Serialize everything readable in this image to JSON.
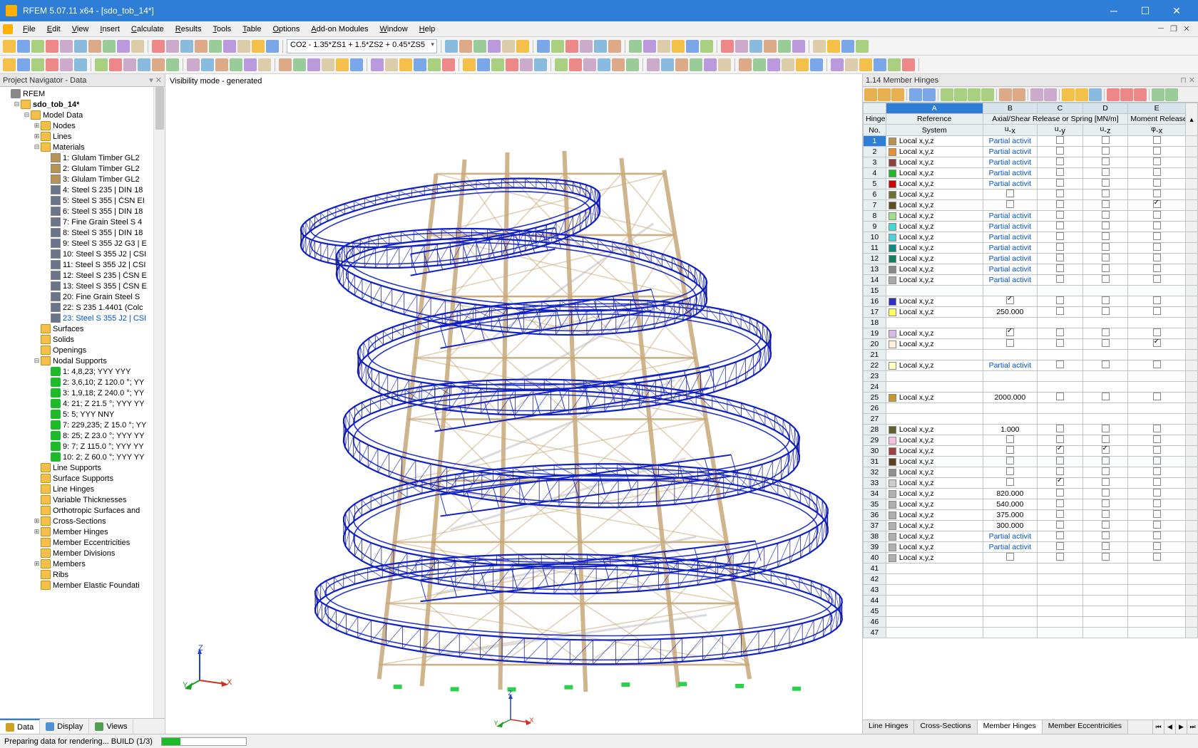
{
  "app": {
    "title": "RFEM 5.07.11 x64 - [sdo_tob_14*]",
    "icon_color": "#ffb000",
    "titlebar_bg": "#2e7dd7"
  },
  "menu": [
    "File",
    "Edit",
    "View",
    "Insert",
    "Calculate",
    "Results",
    "Tools",
    "Table",
    "Options",
    "Add-on Modules",
    "Window",
    "Help"
  ],
  "toolbar1_combo": "CO2 - 1.35*ZS1 + 1.5*ZS2 + 0.45*ZS5",
  "nav": {
    "title": "Project Navigator - Data",
    "root": "RFEM",
    "project": "sdo_tob_14*",
    "model_data": "Model Data",
    "basics": [
      "Nodes",
      "Lines",
      "Materials"
    ],
    "materials": [
      "1: Glulam Timber GL2",
      "2: Glulam Timber GL2",
      "3: Glulam Timber GL2",
      "4: Steel S 235 | DIN 18",
      "5: Steel S 355 | ČSN EI",
      "6: Steel S 355 | DIN 18",
      "7: Fine Grain Steel S 4",
      "8: Steel S 355 | DIN 18",
      "9: Steel S 355 J2 G3 | E",
      "10: Steel S 355 J2 | CSI",
      "11: Steel S 355 J2 | CSI",
      "12: Steel S 235 | ČSN E",
      "13: Steel S 355 | ČSN E",
      "20: Fine Grain Steel S",
      "22: S 235 1.4401 (Colc",
      "23: Steel S 355 J2 | CSI"
    ],
    "material_selected_idx": 15,
    "mid": [
      "Surfaces",
      "Solids",
      "Openings",
      "Nodal Supports"
    ],
    "supports": [
      "1: 4,8,23; YYY YYY",
      "2: 3,6,10; Z 120.0 °; YY",
      "3: 1,9,18; Z 240.0 °; YY",
      "4: 21; Z 21.5 °; YYY YY",
      "5: 5; YYY NNY",
      "7: 229,235; Z 15.0 °; YY",
      "8: 25; Z 23.0 °; YYY YY",
      "9: 7; Z 115.0 °; YYY YY",
      "10: 2; Z 60.0 °; YYY YY"
    ],
    "tail": [
      "Line Supports",
      "Surface Supports",
      "Line Hinges",
      "Variable Thicknesses",
      "Orthotropic Surfaces and",
      "Cross-Sections",
      "Member Hinges",
      "Member Eccentricities",
      "Member Divisions",
      "Members",
      "Ribs",
      "Member Elastic Foundati"
    ],
    "tabs": [
      "Data",
      "Display",
      "Views"
    ],
    "tab_icons": [
      "#d0a020",
      "#5090d0",
      "#50a050"
    ]
  },
  "viewport": {
    "label": "Visibility mode - generated"
  },
  "table": {
    "title": "1.14 Member Hinges",
    "cols_letters": [
      "A",
      "B",
      "C",
      "D",
      "E"
    ],
    "header1": [
      "Hinge",
      "Reference",
      "Axial/Shear Release or Spring [MN/m]",
      "Moment Release"
    ],
    "header2": [
      "No.",
      "System",
      "u-x",
      "u-y",
      "u-z",
      "φ-x"
    ],
    "ref_text": "Local x,y,z",
    "partial_text": "Partial activit",
    "rows": [
      {
        "n": 1,
        "c": "#b89454",
        "ux": "P",
        "uy": "chk",
        "uz": "chk",
        "px": "chk",
        "sel": true
      },
      {
        "n": 2,
        "c": "#e89030",
        "ux": "P",
        "uy": "chk",
        "uz": "chk",
        "px": "chk"
      },
      {
        "n": 3,
        "c": "#904040",
        "ux": "P",
        "uy": "chk",
        "uz": "chk",
        "px": "chk"
      },
      {
        "n": 4,
        "c": "#1dbb2a",
        "ux": "P",
        "uy": "chk",
        "uz": "chk",
        "px": "chk"
      },
      {
        "n": 5,
        "c": "#d30000",
        "ux": "P",
        "uy": "chk",
        "uz": "chk",
        "px": "chk"
      },
      {
        "n": 6,
        "c": "#707030",
        "ux": "chk",
        "uy": "chk",
        "uz": "chk",
        "px": "chk"
      },
      {
        "n": 7,
        "c": "#605020",
        "ux": "chk",
        "uy": "chk",
        "uz": "chk",
        "px": "chkon"
      },
      {
        "n": 8,
        "c": "#9de08a",
        "ux": "P",
        "uy": "chk",
        "uz": "chk",
        "px": "chk"
      },
      {
        "n": 9,
        "c": "#40d8d0",
        "ux": "P",
        "uy": "chk",
        "uz": "chk",
        "px": "chk"
      },
      {
        "n": 10,
        "c": "#4fd0d8",
        "ux": "P",
        "uy": "chk",
        "uz": "chk",
        "px": "chk"
      },
      {
        "n": 11,
        "c": "#0f8a80",
        "ux": "P",
        "uy": "chk",
        "uz": "chk",
        "px": "chk"
      },
      {
        "n": 12,
        "c": "#108060",
        "ux": "P",
        "uy": "chk",
        "uz": "chk",
        "px": "chk"
      },
      {
        "n": 13,
        "c": "#888888",
        "ux": "P",
        "uy": "chk",
        "uz": "chk",
        "px": "chk"
      },
      {
        "n": 14,
        "c": "#aaaaaa",
        "ux": "P",
        "uy": "chk",
        "uz": "chk",
        "px": "chk"
      },
      {
        "n": 15,
        "empty": true
      },
      {
        "n": 16,
        "c": "#3030c8",
        "ux": "chkon",
        "uy": "chk",
        "uz": "chk",
        "px": "chk"
      },
      {
        "n": 17,
        "c": "#ffff60",
        "ux": "250.000",
        "uy": "chk",
        "uz": "chk",
        "px": "chk"
      },
      {
        "n": 18,
        "empty": true
      },
      {
        "n": 19,
        "c": "#d8b8e8",
        "ux": "chkon",
        "uy": "chk",
        "uz": "chk",
        "px": "chk"
      },
      {
        "n": 20,
        "c": "#fff0d8",
        "ux": "chk",
        "uy": "chk",
        "uz": "chk",
        "px": "chkon"
      },
      {
        "n": 21,
        "empty": true
      },
      {
        "n": 22,
        "c": "#ffffc0",
        "ux": "P",
        "uy": "chk",
        "uz": "chk",
        "px": "chk"
      },
      {
        "n": 23,
        "empty": true
      },
      {
        "n": 24,
        "empty": true
      },
      {
        "n": 25,
        "c": "#c89830",
        "ux": "2000.000",
        "uy": "chk",
        "uz": "chk",
        "px": "chk"
      },
      {
        "n": 26,
        "empty": true
      },
      {
        "n": 27,
        "empty": true
      },
      {
        "n": 28,
        "c": "#606030",
        "ux": "1.000",
        "uy": "chk",
        "uz": "chk",
        "px": "chk"
      },
      {
        "n": 29,
        "c": "#f8c0e0",
        "ux": "chk",
        "uy": "chk",
        "uz": "chk",
        "px": "chk"
      },
      {
        "n": 30,
        "c": "#a04040",
        "ux": "chk",
        "uy": "chkon",
        "uz": "chkon",
        "px": "chk"
      },
      {
        "n": 31,
        "c": "#604020",
        "ux": "chk",
        "uy": "chk",
        "uz": "chk",
        "px": "chk"
      },
      {
        "n": 32,
        "c": "#909090",
        "ux": "chk",
        "uy": "chk",
        "uz": "chk",
        "px": "chk"
      },
      {
        "n": 33,
        "c": "#cccccc",
        "ux": "chk",
        "uy": "chkon",
        "uz": "chk",
        "px": "chk"
      },
      {
        "n": 34,
        "c": "#b0b0b0",
        "ux": "820.000",
        "uy": "chk",
        "uz": "chk",
        "px": "chk"
      },
      {
        "n": 35,
        "c": "#b0b0b0",
        "ux": "540.000",
        "uy": "chk",
        "uz": "chk",
        "px": "chk"
      },
      {
        "n": 36,
        "c": "#b0b0b0",
        "ux": "375.000",
        "uy": "chk",
        "uz": "chk",
        "px": "chk"
      },
      {
        "n": 37,
        "c": "#b0b0b0",
        "ux": "300.000",
        "uy": "chk",
        "uz": "chk",
        "px": "chk"
      },
      {
        "n": 38,
        "c": "#b0b0b0",
        "ux": "P",
        "uy": "chk",
        "uz": "chk",
        "px": "chk"
      },
      {
        "n": 39,
        "c": "#b0b0b0",
        "ux": "P",
        "uy": "chk",
        "uz": "chk",
        "px": "chk"
      },
      {
        "n": 40,
        "c": "#b0b0b0",
        "ux": "chk",
        "uy": "chk",
        "uz": "chk",
        "px": "chk"
      },
      {
        "n": 41,
        "empty": true
      },
      {
        "n": 42,
        "empty": true
      },
      {
        "n": 43,
        "empty": true
      },
      {
        "n": 44,
        "empty": true
      },
      {
        "n": 45,
        "empty": true
      },
      {
        "n": 46,
        "empty": true
      },
      {
        "n": 47,
        "empty": true
      }
    ],
    "tabs": [
      "Line Hinges",
      "Cross-Sections",
      "Member Hinges",
      "Member Eccentricities"
    ],
    "active_tab": 2
  },
  "status": {
    "text": "Preparing data for rendering... BUILD (1/3)",
    "progress": 0.22
  },
  "colors": {
    "structure_blue": "#1020c8",
    "structure_dark": "#101080",
    "tower_tan": "#c8a878",
    "tower_grey": "#b8b8b8",
    "axis_x": "#d03020",
    "axis_y": "#20a020",
    "axis_z": "#2040d0"
  }
}
